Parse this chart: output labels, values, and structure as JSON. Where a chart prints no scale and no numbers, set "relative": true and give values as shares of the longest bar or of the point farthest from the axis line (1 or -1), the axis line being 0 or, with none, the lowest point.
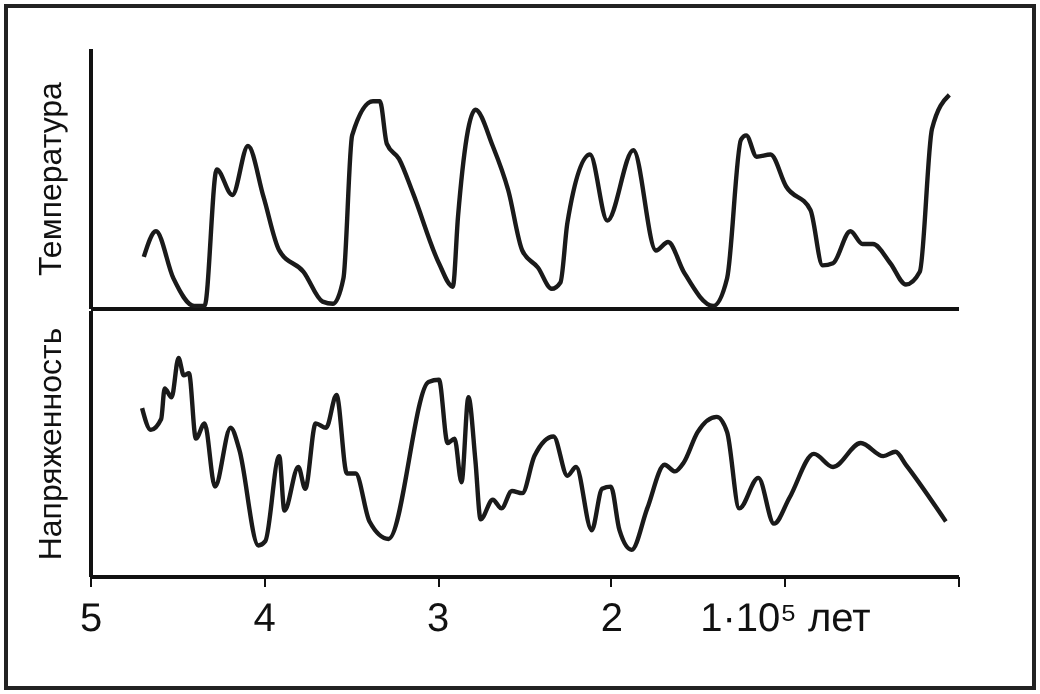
{
  "chart_data": [
    {
      "type": "line",
      "ylabel": "Температура",
      "relative": true,
      "xlim": [
        5,
        0
      ],
      "tick_labels": false,
      "grid": false,
      "marker": "none",
      "line_style": "solid",
      "series": [
        {
          "color": "#1a1a1a",
          "x": [
            4.69,
            4.62,
            4.52,
            4.4,
            4.34,
            4.27,
            4.18,
            4.09,
            4.0,
            3.91,
            3.77,
            3.66,
            3.6,
            3.54,
            3.49,
            3.37,
            3.33,
            3.29,
            3.22,
            3.14,
            2.99,
            2.91,
            2.88,
            2.78,
            2.68,
            2.59,
            2.51,
            2.42,
            2.34,
            2.29,
            2.25,
            2.12,
            2.02,
            1.87,
            1.74,
            1.67,
            1.58,
            1.41,
            1.33,
            1.25,
            1.22,
            1.16,
            1.08,
            0.99,
            0.85,
            0.78,
            0.72,
            0.62,
            0.55,
            0.49,
            0.39,
            0.3,
            0.22,
            0.15,
            0.05
          ],
          "values": [
            0.24,
            0.36,
            0.14,
            0.01,
            0.01,
            0.65,
            0.53,
            0.76,
            0.52,
            0.27,
            0.17,
            0.03,
            0.02,
            0.14,
            0.81,
            0.97,
            0.97,
            0.77,
            0.7,
            0.54,
            0.21,
            0.1,
            0.43,
            0.93,
            0.76,
            0.55,
            0.27,
            0.19,
            0.09,
            0.12,
            0.4,
            0.72,
            0.41,
            0.74,
            0.27,
            0.31,
            0.17,
            0.01,
            0.14,
            0.79,
            0.81,
            0.71,
            0.72,
            0.57,
            0.46,
            0.2,
            0.21,
            0.36,
            0.3,
            0.3,
            0.21,
            0.11,
            0.17,
            0.84,
            1
          ]
        }
      ]
    },
    {
      "type": "line",
      "ylabel": "Напряженность",
      "relative": true,
      "xlim": [
        5,
        0
      ],
      "xticks": [
        5,
        4,
        3,
        2,
        {
          "value": 1,
          "label": "1·10⁵ лет"
        },
        {
          "value": 0,
          "label": null
        }
      ],
      "tick_labels": "x",
      "grid": false,
      "marker": "none",
      "line_style": "solid",
      "series": [
        {
          "color": "#1a1a1a",
          "x": [
            4.7,
            4.65,
            4.59,
            4.57,
            4.53,
            4.49,
            4.46,
            4.43,
            4.39,
            4.34,
            4.28,
            4.19,
            4.14,
            4.03,
            3.99,
            3.91,
            3.88,
            3.8,
            3.76,
            3.7,
            3.64,
            3.58,
            3.52,
            3.47,
            3.39,
            3.28,
            3.05,
            2.99,
            2.94,
            2.9,
            2.86,
            2.82,
            2.78,
            2.75,
            2.68,
            2.63,
            2.57,
            2.51,
            2.44,
            2.33,
            2.25,
            2.2,
            2.11,
            2.05,
            2.0,
            1.95,
            1.88,
            1.79,
            1.69,
            1.63,
            1.58,
            1.5,
            1.39,
            1.33,
            1.26,
            1.15,
            1.06,
            0.97,
            0.83,
            0.72,
            0.56,
            0.43,
            0.36,
            0.3,
            0.07
          ],
          "values": [
            0.77,
            0.67,
            0.72,
            0.86,
            0.82,
            1.0,
            0.92,
            0.93,
            0.63,
            0.7,
            0.41,
            0.68,
            0.58,
            0.14,
            0.16,
            0.55,
            0.3,
            0.5,
            0.4,
            0.7,
            0.68,
            0.83,
            0.47,
            0.47,
            0.25,
            0.17,
            0.89,
            0.9,
            0.61,
            0.63,
            0.43,
            0.82,
            0.53,
            0.26,
            0.35,
            0.31,
            0.39,
            0.38,
            0.55,
            0.64,
            0.46,
            0.5,
            0.21,
            0.4,
            0.41,
            0.21,
            0.12,
            0.31,
            0.51,
            0.48,
            0.52,
            0.66,
            0.73,
            0.66,
            0.31,
            0.45,
            0.24,
            0.36,
            0.56,
            0.5,
            0.61,
            0.55,
            0.57,
            0.51,
            0.25
          ]
        }
      ]
    }
  ]
}
